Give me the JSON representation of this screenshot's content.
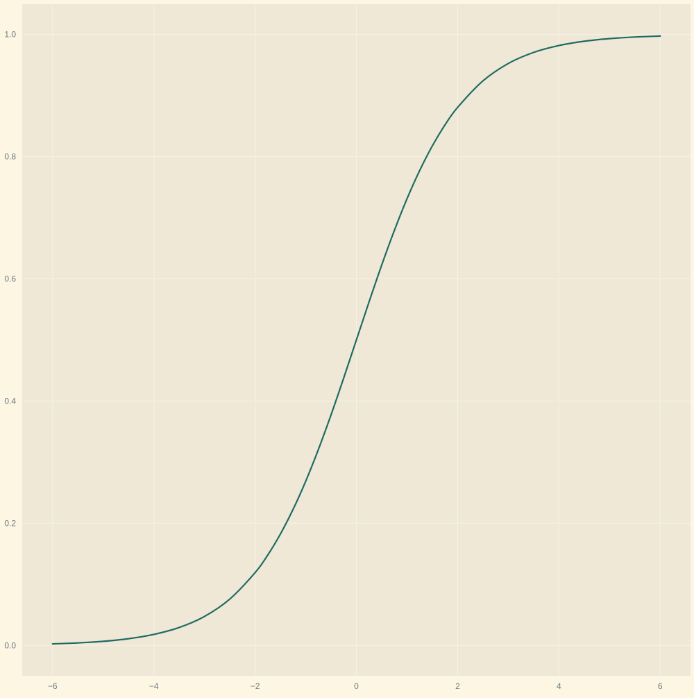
{
  "chart_data": {
    "type": "line",
    "title": "",
    "xlabel": "",
    "ylabel": "",
    "xlim": [
      -6.6,
      6.6
    ],
    "ylim": [
      -0.0497,
      1.0497
    ],
    "x_ticks": [
      -6,
      -4,
      -2,
      0,
      2,
      4,
      6
    ],
    "x_tick_labels": [
      "−6",
      "−4",
      "−2",
      "0",
      "2",
      "4",
      "6"
    ],
    "y_ticks": [
      0.0,
      0.2,
      0.4,
      0.6,
      0.8,
      1.0
    ],
    "y_tick_labels": [
      "0.0",
      "0.2",
      "0.4",
      "0.6",
      "0.8",
      "1.0"
    ],
    "grid": true,
    "series": [
      {
        "color": "#1F6B60",
        "x": [
          -6.0,
          -5.5,
          -5.0,
          -4.5,
          -4.0,
          -3.5,
          -3.0,
          -2.5,
          -2.0,
          -1.75,
          -1.5,
          -1.25,
          -1.0,
          -0.75,
          -0.5,
          -0.25,
          0.0,
          0.25,
          0.5,
          0.75,
          1.0,
          1.25,
          1.5,
          1.75,
          2.0,
          2.5,
          3.0,
          3.5,
          4.0,
          4.5,
          5.0,
          5.5,
          6.0
        ],
        "y": [
          0.0025,
          0.0041,
          0.0067,
          0.011,
          0.018,
          0.0293,
          0.0474,
          0.0759,
          0.1192,
          0.148,
          0.1824,
          0.2227,
          0.2689,
          0.3208,
          0.3775,
          0.4378,
          0.5,
          0.5622,
          0.6225,
          0.6792,
          0.7311,
          0.7773,
          0.8176,
          0.852,
          0.8808,
          0.9241,
          0.9526,
          0.9707,
          0.982,
          0.989,
          0.9933,
          0.9959,
          0.9975
        ]
      }
    ]
  },
  "colors": {
    "figure_background": "#FDF6E3",
    "plot_background": "#EFE8D7",
    "grid": "#F7F2E6",
    "tick_text": "#6B7B80",
    "line": "#1F6B60"
  }
}
